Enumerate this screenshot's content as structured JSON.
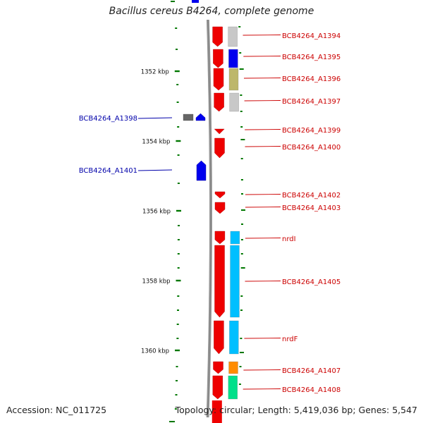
{
  "title": "Bacillus cereus B4264, complete genome",
  "footer": {
    "accession": "Accession: NC_011725",
    "topology": "Topology: circular; Length: 5,419,036 bp; Genes: 5,547"
  },
  "colors": {
    "forward_cds": "#ee0000",
    "reverse_cds": "#0000ee",
    "pseudogene": "#666666",
    "tick": "#007700",
    "backbone": "#888888",
    "forward_label": "#cc0000",
    "reverse_label": "#0000aa"
  },
  "scale": {
    "unit": "kbp",
    "labels": [
      "1352 kbp",
      "1354 kbp",
      "1356 kbp",
      "1358 kbp",
      "1360 kbp"
    ]
  },
  "forward_genes": [
    {
      "label": "BCB4264_A1394",
      "cog_color": "#c8c8c8"
    },
    {
      "label": "BCB4264_A1395",
      "cog_color": "#0000ee"
    },
    {
      "label": "BCB4264_A1396",
      "cog_color": "#bdb76b"
    },
    {
      "label": "BCB4264_A1397",
      "cog_color": "#c8c8c8"
    },
    {
      "label": "BCB4264_A1399",
      "cog_color": null
    },
    {
      "label": "BCB4264_A1400",
      "cog_color": null
    },
    {
      "label": "BCB4264_A1402",
      "cog_color": null
    },
    {
      "label": "BCB4264_A1403",
      "cog_color": null
    },
    {
      "label": "nrdI",
      "cog_color": "#00bfff"
    },
    {
      "label": "BCB4264_A1405",
      "cog_color": "#00bfff"
    },
    {
      "label": "nrdF",
      "cog_color": "#00bfff"
    },
    {
      "label": "BCB4264_A1407",
      "cog_color": "#ff8c00"
    },
    {
      "label": "BCB4264_A1408",
      "cog_color": "#00e08a"
    }
  ],
  "reverse_genes": [
    {
      "label": "BCB4264_A1398"
    },
    {
      "label": "BCB4264_A1401"
    }
  ]
}
